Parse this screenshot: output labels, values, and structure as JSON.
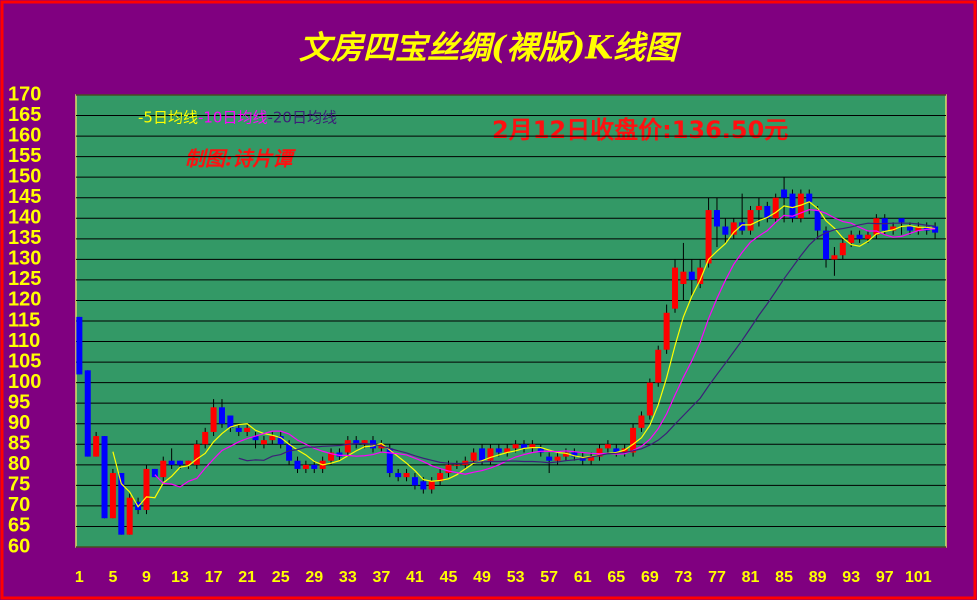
{
  "chart_data": {
    "type": "candlestick",
    "title": "文房四宝丝绸(裸版)K线图",
    "annotations": [
      "2月12日收盘价:136.50元",
      "制图:诗片谭"
    ],
    "up_color": "#ff0000",
    "down_color": "#0000ff",
    "grid": true,
    "xlim": [
      0.6,
      104.3
    ],
    "xticks": [
      1,
      5,
      9,
      13,
      17,
      21,
      25,
      29,
      33,
      37,
      41,
      45,
      49,
      53,
      57,
      61,
      65,
      69,
      73,
      77,
      81,
      85,
      89,
      93,
      97,
      101
    ],
    "ylim": [
      60,
      170
    ],
    "yticks": [
      60,
      65,
      70,
      75,
      80,
      85,
      90,
      95,
      100,
      105,
      110,
      115,
      120,
      125,
      130,
      135,
      140,
      145,
      150,
      155,
      160,
      165,
      170
    ],
    "x": [
      1,
      2,
      3,
      4,
      5,
      6,
      7,
      8,
      9,
      10,
      11,
      12,
      13,
      14,
      15,
      16,
      17,
      18,
      19,
      20,
      21,
      22,
      23,
      24,
      25,
      26,
      27,
      28,
      29,
      30,
      31,
      32,
      33,
      34,
      35,
      36,
      37,
      38,
      39,
      40,
      41,
      42,
      43,
      44,
      45,
      46,
      47,
      48,
      49,
      50,
      51,
      52,
      53,
      54,
      55,
      56,
      57,
      58,
      59,
      60,
      61,
      62,
      63,
      64,
      65,
      66,
      67,
      68,
      69,
      70,
      71,
      72,
      73,
      74,
      75,
      76,
      77,
      78,
      79,
      80,
      81,
      82,
      83,
      84,
      85,
      86,
      87,
      88,
      89,
      90,
      91,
      92,
      93,
      94,
      95,
      96,
      97,
      98,
      99,
      100,
      101,
      102,
      103
    ],
    "open": [
      116,
      103,
      82,
      87,
      67,
      78,
      63,
      71,
      69,
      79,
      77,
      81,
      81,
      80,
      80,
      85,
      88,
      94,
      92,
      89,
      88,
      87,
      85,
      86,
      87,
      85,
      81,
      79,
      80,
      79,
      81,
      83,
      83,
      86,
      85,
      86,
      84,
      84,
      78,
      77,
      77,
      76,
      74,
      76,
      78,
      80,
      80,
      81,
      84,
      81,
      84,
      83,
      84,
      85,
      84,
      84,
      82,
      81,
      82,
      83,
      82,
      81,
      82,
      84,
      84,
      83,
      83,
      89,
      92,
      100,
      108,
      118,
      124,
      127,
      124,
      129,
      142,
      138,
      136,
      139,
      137,
      142,
      143,
      140,
      147,
      146,
      140,
      146,
      142,
      137,
      130,
      131,
      134,
      136,
      135,
      136,
      140,
      137,
      140,
      138,
      137,
      138,
      138
    ],
    "high": [
      116,
      103,
      88,
      87,
      79,
      78,
      73,
      72,
      80,
      79,
      82,
      84,
      81,
      81,
      86,
      89,
      96,
      96,
      92,
      90,
      90,
      88,
      87,
      88,
      88,
      86,
      82,
      81,
      81,
      82,
      84,
      84,
      87,
      87,
      86,
      87,
      86,
      85,
      79,
      79,
      78,
      77,
      77,
      79,
      81,
      81,
      82,
      84,
      85,
      85,
      85,
      85,
      86,
      86,
      86,
      85,
      83,
      83,
      84,
      84,
      83,
      83,
      85,
      86,
      85,
      85,
      90,
      93,
      101,
      109,
      119,
      130,
      134,
      130,
      130,
      145,
      145,
      140,
      140,
      146,
      143,
      145,
      144,
      146,
      150,
      147,
      147,
      147,
      143,
      138,
      133,
      135,
      137,
      137,
      137,
      141,
      141,
      139,
      140,
      139,
      139,
      139,
      139
    ],
    "low": [
      102,
      82,
      82,
      67,
      67,
      63,
      63,
      68,
      68,
      77,
      76,
      79,
      79,
      79,
      79,
      84,
      87,
      89,
      88,
      87,
      87,
      84,
      84,
      85,
      84,
      80,
      78,
      78,
      78,
      78,
      80,
      81,
      82,
      84,
      84,
      83,
      83,
      77,
      76,
      76,
      74,
      73,
      73,
      75,
      77,
      79,
      79,
      80,
      80,
      80,
      82,
      82,
      83,
      83,
      83,
      82,
      78,
      80,
      81,
      81,
      80,
      80,
      81,
      83,
      82,
      82,
      82,
      88,
      91,
      99,
      107,
      117,
      120,
      121,
      123,
      128,
      133,
      134,
      135,
      136,
      136,
      138,
      139,
      139,
      139,
      139,
      139,
      141,
      135,
      128,
      126,
      130,
      133,
      134,
      134,
      135,
      136,
      136,
      136,
      136,
      136,
      136,
      135
    ],
    "close": [
      102,
      82,
      87,
      67,
      78,
      63,
      72,
      69,
      79,
      77,
      81,
      80,
      80,
      81,
      85,
      88,
      94,
      90,
      89,
      88,
      89,
      86,
      86,
      87,
      85,
      81,
      79,
      80,
      79,
      81,
      83,
      82,
      86,
      85,
      86,
      84,
      85,
      78,
      77,
      78,
      75,
      74,
      76,
      78,
      80,
      80,
      81,
      83,
      81,
      84,
      83,
      84,
      85,
      84,
      85,
      83,
      81,
      82,
      83,
      82,
      81,
      82,
      84,
      85,
      83,
      84,
      89,
      92,
      100,
      108,
      117,
      128,
      127,
      125,
      128,
      142,
      138,
      136,
      139,
      137,
      142,
      143,
      140,
      145,
      145,
      140,
      146,
      144,
      137,
      130,
      131,
      134,
      136,
      135,
      136,
      140,
      137,
      138,
      139,
      137,
      138,
      137,
      136.5
    ],
    "series": [
      {
        "name": "-5日均线",
        "color": "#ffff00",
        "values": [
          null,
          null,
          null,
          null,
          83.2,
          75.4,
          73.4,
          69.8,
          72.2,
          72,
          75.6,
          77.2,
          79.4,
          79.8,
          81.4,
          82.8,
          85.6,
          87.6,
          89.2,
          89.8,
          90,
          88.4,
          87.6,
          87.2,
          86.6,
          85,
          83.6,
          82.4,
          80.8,
          80,
          80.4,
          81,
          82.2,
          83.4,
          84.4,
          84.6,
          85.2,
          83.6,
          82,
          80.4,
          78.6,
          76.4,
          76,
          76.2,
          76.6,
          77.6,
          79,
          80.4,
          81,
          81.8,
          82.4,
          83,
          83.4,
          84,
          84.2,
          84.2,
          83.6,
          83,
          82.8,
          82.2,
          81.8,
          82,
          82.4,
          82.8,
          83,
          83.6,
          85,
          86.6,
          89.6,
          94.6,
          101.2,
          109,
          116,
          121,
          125,
          130,
          132,
          133.8,
          136.6,
          138.4,
          138.4,
          139.4,
          140.2,
          141.4,
          143,
          142.6,
          143.2,
          144,
          142.4,
          139.4,
          137.6,
          135.2,
          133.6,
          133.2,
          134.4,
          136.2,
          136.8,
          137.2,
          138,
          138.2,
          137.8,
          137.8,
          137.5
        ]
      },
      {
        "name": "-10日均线",
        "color": "#ff00ff",
        "values": [
          null,
          null,
          null,
          null,
          null,
          null,
          null,
          null,
          null,
          77.6,
          75.5,
          75.3,
          74.6,
          76,
          76.7,
          79.2,
          81.4,
          83.5,
          84.5,
          85.6,
          86.4,
          87,
          87.6,
          88.2,
          88.2,
          87.5,
          86,
          85,
          84,
          83.3,
          82.7,
          82.3,
          82.3,
          82.1,
          82.2,
          82.5,
          83.1,
          82.9,
          82.7,
          82.4,
          81.6,
          80.8,
          79.8,
          79.1,
          78.5,
          78.1,
          77.7,
          78.2,
          78.6,
          79.2,
          80,
          81,
          81.9,
          82.5,
          83,
          83.3,
          83.3,
          83.2,
          83.4,
          83.2,
          83,
          82.8,
          82.7,
          82.8,
          82.6,
          82.7,
          83.5,
          84.5,
          86.2,
          88.8,
          92.4,
          97,
          101.3,
          105.3,
          109.8,
          115.6,
          120.5,
          124.9,
          128.8,
          131.7,
          134.2,
          135.7,
          137,
          139,
          140.7,
          140.5,
          141.3,
          142.1,
          141.9,
          141.2,
          140.1,
          139.2,
          138.8,
          137.8,
          136.9,
          136.9,
          136,
          135.4,
          135.6,
          136.3,
          137,
          137.3,
          137.4
        ]
      },
      {
        "name": "-20日均线",
        "color": "#3c1f78",
        "values": [
          null,
          null,
          null,
          null,
          null,
          null,
          null,
          null,
          null,
          null,
          null,
          null,
          null,
          null,
          null,
          null,
          null,
          null,
          null,
          81.6,
          81,
          81.2,
          81.1,
          82.1,
          82.5,
          83.4,
          83.7,
          84.3,
          84.3,
          84.5,
          84.6,
          84.7,
          85,
          85.2,
          85.2,
          85,
          84.6,
          84,
          83.4,
          82.9,
          82.2,
          81.6,
          81.1,
          80.6,
          80.4,
          80.3,
          80.4,
          80.6,
          80.7,
          80.8,
          80.8,
          80.9,
          80.9,
          80.8,
          80.8,
          80.7,
          80.5,
          80.7,
          81,
          81.2,
          81.5,
          81.9,
          82.3,
          82.7,
          82.8,
          83,
          83.4,
          83.9,
          84.8,
          86,
          87.7,
          89.9,
          92,
          94.1,
          96.2,
          99.2,
          102,
          104.7,
          107.5,
          110.3,
          113.3,
          116.4,
          119.2,
          122.2,
          125.3,
          128.1,
          130.9,
          133.5,
          135.4,
          136.5,
          137.2,
          137.5,
          137.9,
          138.4,
          138.8,
          138.7,
          138.7,
          138.8,
          138.8,
          138.8,
          138.6,
          138.3,
          138.1
        ]
      }
    ]
  }
}
